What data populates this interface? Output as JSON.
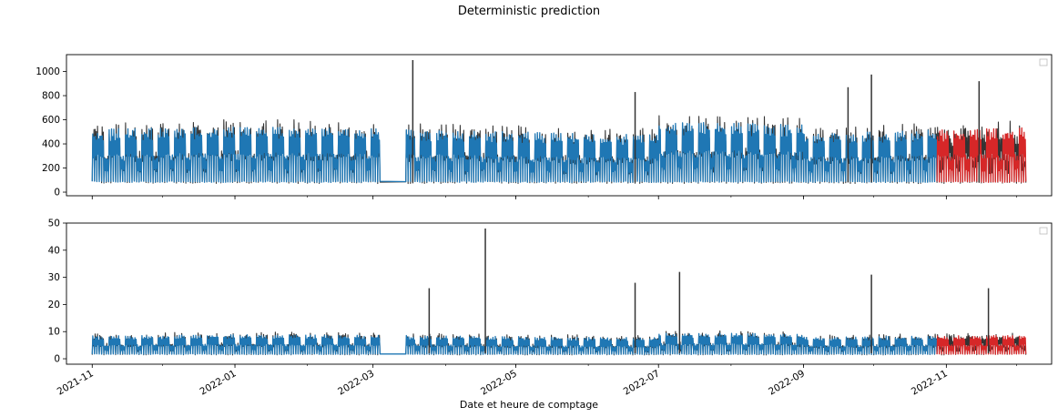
{
  "figure": {
    "title": "Deterministic prediction",
    "xlabel": "Date et heure de comptage"
  },
  "colors": {
    "actual": "#333333",
    "fitted": "#1f77b4",
    "forecast": "#d62728",
    "axes": "#000000",
    "background": "#ffffff"
  },
  "chart_data": [
    {
      "type": "line",
      "title": "",
      "xlabel": "",
      "ylabel": "",
      "x_range": [
        "2021-10-21",
        "2022-12-16"
      ],
      "ylim": [
        -30,
        1140
      ],
      "yticks": [
        0,
        200,
        400,
        600,
        800,
        1000
      ],
      "xticks": [
        "2021-11",
        "2022-01",
        "2022-03",
        "2022-05",
        "2022-07",
        "2022-09",
        "2022-11"
      ],
      "grid": false,
      "legend": "top-right (empty)",
      "tick_labels_x_visible": false,
      "series_description": [
        {
          "role": "actual",
          "color": "#333333",
          "start": "2021-11-01",
          "end": "2022-12-05",
          "min": 30,
          "max": 1095
        },
        {
          "role": "fitted",
          "color": "#1f77b4",
          "start": "2021-11-01",
          "end": "2022-10-28",
          "min": 20,
          "max": 650
        },
        {
          "role": "forecast",
          "color": "#d62728",
          "start": "2022-10-28",
          "end": "2022-12-05",
          "min": 30,
          "max": 720
        }
      ],
      "gap": {
        "start": "2022-03-04",
        "end": "2022-03-15"
      },
      "spikes": [
        {
          "x": "2022-03-18",
          "y": 1095
        },
        {
          "x": "2022-09-30",
          "y": 975
        },
        {
          "x": "2022-09-20",
          "y": 870
        },
        {
          "x": "2022-11-15",
          "y": 920
        },
        {
          "x": "2022-06-21",
          "y": 830
        }
      ]
    },
    {
      "type": "line",
      "title": "",
      "xlabel": "Date et heure de comptage",
      "ylabel": "",
      "x_range": [
        "2021-10-21",
        "2022-12-16"
      ],
      "ylim": [
        -2,
        50
      ],
      "yticks": [
        0,
        10,
        20,
        30,
        40,
        50
      ],
      "xticks": [
        "2021-11",
        "2022-01",
        "2022-03",
        "2022-05",
        "2022-07",
        "2022-09",
        "2022-11"
      ],
      "grid": false,
      "legend": "top-right (empty)",
      "tick_labels_x_visible": true,
      "series_description": [
        {
          "role": "actual",
          "color": "#333333",
          "start": "2021-11-01",
          "end": "2022-12-05",
          "min": 0.5,
          "max": 48
        },
        {
          "role": "fitted",
          "color": "#1f77b4",
          "start": "2021-11-01",
          "end": "2022-10-28",
          "min": 0.5,
          "max": 14
        },
        {
          "role": "forecast",
          "color": "#d62728",
          "start": "2022-10-28",
          "end": "2022-12-05",
          "min": 1,
          "max": 12
        }
      ],
      "gap": {
        "start": "2022-03-04",
        "end": "2022-03-15"
      },
      "spikes": [
        {
          "x": "2022-04-18",
          "y": 48
        },
        {
          "x": "2022-07-10",
          "y": 32
        },
        {
          "x": "2022-09-30",
          "y": 31
        },
        {
          "x": "2022-06-21",
          "y": 28
        },
        {
          "x": "2022-11-19",
          "y": 26
        },
        {
          "x": "2022-03-25",
          "y": 26
        }
      ]
    }
  ]
}
